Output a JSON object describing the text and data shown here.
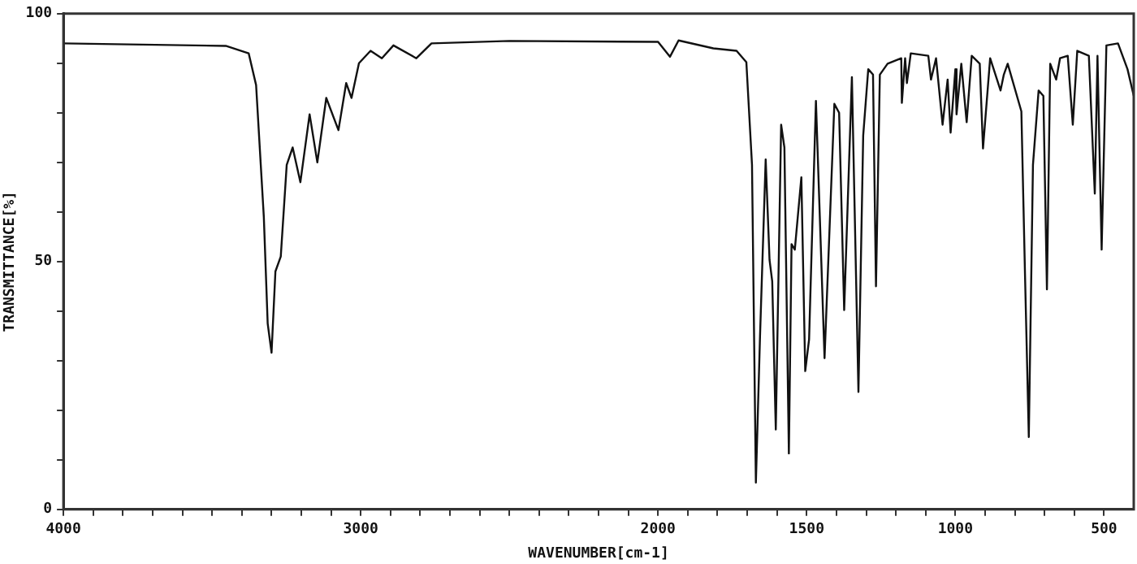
{
  "chart_data": {
    "type": "line",
    "xlabel": "WAVENUMBER[cm-1]",
    "ylabel": "TRANSMITTANCE[%]",
    "xlim": [
      4000,
      400
    ],
    "ylim": [
      0,
      100
    ],
    "xticks": [
      4000,
      {
        "value": 3900,
        "label": null
      },
      {
        "value": 3800,
        "label": null
      },
      {
        "value": 3700,
        "label": null
      },
      {
        "value": 3600,
        "label": null
      },
      {
        "value": 3500,
        "label": null
      },
      {
        "value": 3400,
        "label": null
      },
      {
        "value": 3300,
        "label": null
      },
      {
        "value": 3200,
        "label": null
      },
      {
        "value": 3100,
        "label": null
      },
      3000,
      {
        "value": 2900,
        "label": null
      },
      {
        "value": 2800,
        "label": null
      },
      {
        "value": 2700,
        "label": null
      },
      {
        "value": 2600,
        "label": null
      },
      {
        "value": 2500,
        "label": null
      },
      {
        "value": 2400,
        "label": null
      },
      {
        "value": 2300,
        "label": null
      },
      {
        "value": 2200,
        "label": null
      },
      {
        "value": 2100,
        "label": null
      },
      2000,
      {
        "value": 1900,
        "label": null
      },
      {
        "value": 1800,
        "label": null
      },
      {
        "value": 1700,
        "label": null
      },
      {
        "value": 1600,
        "label": null
      },
      1500,
      {
        "value": 1400,
        "label": null
      },
      {
        "value": 1300,
        "label": null
      },
      {
        "value": 1200,
        "label": null
      },
      {
        "value": 1100,
        "label": null
      },
      1000,
      {
        "value": 900,
        "label": null
      },
      {
        "value": 800,
        "label": null
      },
      {
        "value": 700,
        "label": null
      },
      {
        "value": 600,
        "label": null
      },
      500
    ],
    "yticks": [
      0,
      {
        "value": 10,
        "label": null
      },
      {
        "value": 20,
        "label": null
      },
      {
        "value": 30,
        "label": null
      },
      {
        "value": 40,
        "label": null
      },
      50,
      {
        "value": 60,
        "label": null
      },
      {
        "value": 70,
        "label": null
      },
      {
        "value": 80,
        "label": null
      },
      {
        "value": 90,
        "label": null
      },
      100
    ],
    "grid": false,
    "legend": false,
    "series": [
      {
        "color": "#111111",
        "x": [
          4000,
          3454,
          3377,
          3352,
          3326,
          3313,
          3300,
          3287,
          3269,
          3249,
          3229,
          3203,
          3172,
          3146,
          3116,
          3075,
          3049,
          3031,
          3006,
          2967,
          2929,
          2890,
          2813,
          2762,
          2500,
          2000,
          1960,
          1931,
          1814,
          1736,
          1703,
          1684,
          1671,
          1657,
          1638,
          1625,
          1616,
          1604,
          1586,
          1575,
          1560,
          1551,
          1540,
          1518,
          1505,
          1492,
          1469,
          1440,
          1407,
          1391,
          1374,
          1348,
          1326,
          1310,
          1293,
          1277,
          1267,
          1254,
          1228,
          1182,
          1180,
          1169,
          1163,
          1150,
          1091,
          1082,
          1065,
          1043,
          1026,
          1016,
          1000,
          996,
          980,
          962,
          945,
          918,
          907,
          883,
          848,
          837,
          824,
          778,
          766,
          753,
          739,
          720,
          704,
          692,
          681,
          661,
          648,
          622,
          605,
          590,
          551,
          531,
          522,
          508,
          492,
          453,
          421,
          400
        ],
        "values": [
          94,
          93.5,
          92,
          85.6,
          59,
          37.5,
          31.6,
          48,
          51,
          69.5,
          73,
          66,
          79.7,
          70,
          83,
          76.5,
          86,
          83,
          90,
          92.5,
          91,
          93.6,
          91,
          94,
          94.5,
          94.3,
          91.3,
          94.6,
          93,
          92.5,
          90.2,
          69.5,
          5.4,
          35,
          70.6,
          50.3,
          46,
          16.1,
          77.6,
          73,
          11.3,
          53.5,
          52.4,
          67,
          27.9,
          34.3,
          82.4,
          30.5,
          81.8,
          80,
          40.2,
          87.2,
          23.7,
          75.4,
          88.8,
          87.7,
          45,
          87.7,
          89.9,
          91,
          82,
          91,
          86,
          92,
          91.5,
          86.7,
          91,
          77.6,
          86.7,
          76,
          88.8,
          79.7,
          89.9,
          78.1,
          91.5,
          89.9,
          72.8,
          91,
          84.5,
          87.7,
          89.9,
          80.3,
          48,
          14.6,
          69.5,
          84.5,
          83.4,
          44.4,
          89.9,
          86.7,
          91,
          91.5,
          77.6,
          92.5,
          91.5,
          63.7,
          91.5,
          52.4,
          93.6,
          94,
          88.8,
          83.4
        ]
      }
    ]
  }
}
